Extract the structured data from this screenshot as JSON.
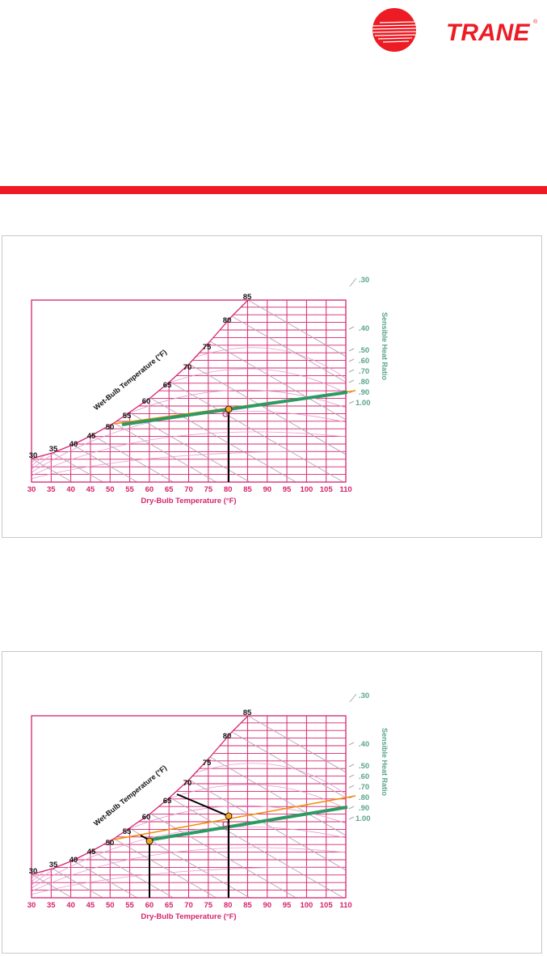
{
  "header": {
    "logo_text": "TRANE",
    "registered_mark": "®",
    "brand_color": "#ed1c24"
  },
  "colors": {
    "grid": "#d6246e",
    "shr_text": "#5aa58a",
    "shr_line": "#2e9a63",
    "room_line": "#f08c00",
    "point_fill": "#f5a623",
    "accent_bar": "#ed1c24"
  },
  "charts": [
    {
      "wet_bulb_title": "Wet-Bulb Temperature (°F)",
      "dry_bulb_title": "Dry-Bulb Temperature (°F)",
      "shr_title": "Sensible Heat Ratio",
      "wet_bulb_labels": [
        "30",
        "35",
        "40",
        "45",
        "50",
        "55",
        "60",
        "65",
        "70",
        "75",
        "80",
        "85"
      ],
      "dry_bulb_ticks": [
        "30",
        "35",
        "40",
        "45",
        "50",
        "55",
        "60",
        "65",
        "70",
        "75",
        "80",
        "85",
        "90",
        "95",
        "100",
        "105",
        "110"
      ],
      "shr_labels": [
        ".30",
        ".40",
        ".50",
        ".60",
        ".70",
        ".80",
        ".90",
        "1.00"
      ]
    },
    {
      "wet_bulb_title": "Wet-Bulb Temperature (°F)",
      "dry_bulb_title": "Dry-Bulb Temperature (°F)",
      "shr_title": "Sensible Heat Ratio",
      "wet_bulb_labels": [
        "30",
        "35",
        "40",
        "45",
        "50",
        "55",
        "60",
        "65",
        "70",
        "75",
        "80",
        "85"
      ],
      "dry_bulb_ticks": [
        "30",
        "35",
        "40",
        "45",
        "50",
        "55",
        "60",
        "65",
        "70",
        "75",
        "80",
        "85",
        "90",
        "95",
        "100",
        "105",
        "110"
      ],
      "shr_labels": [
        ".30",
        ".40",
        ".50",
        ".60",
        ".70",
        ".80",
        ".90",
        "1.00"
      ]
    }
  ]
}
